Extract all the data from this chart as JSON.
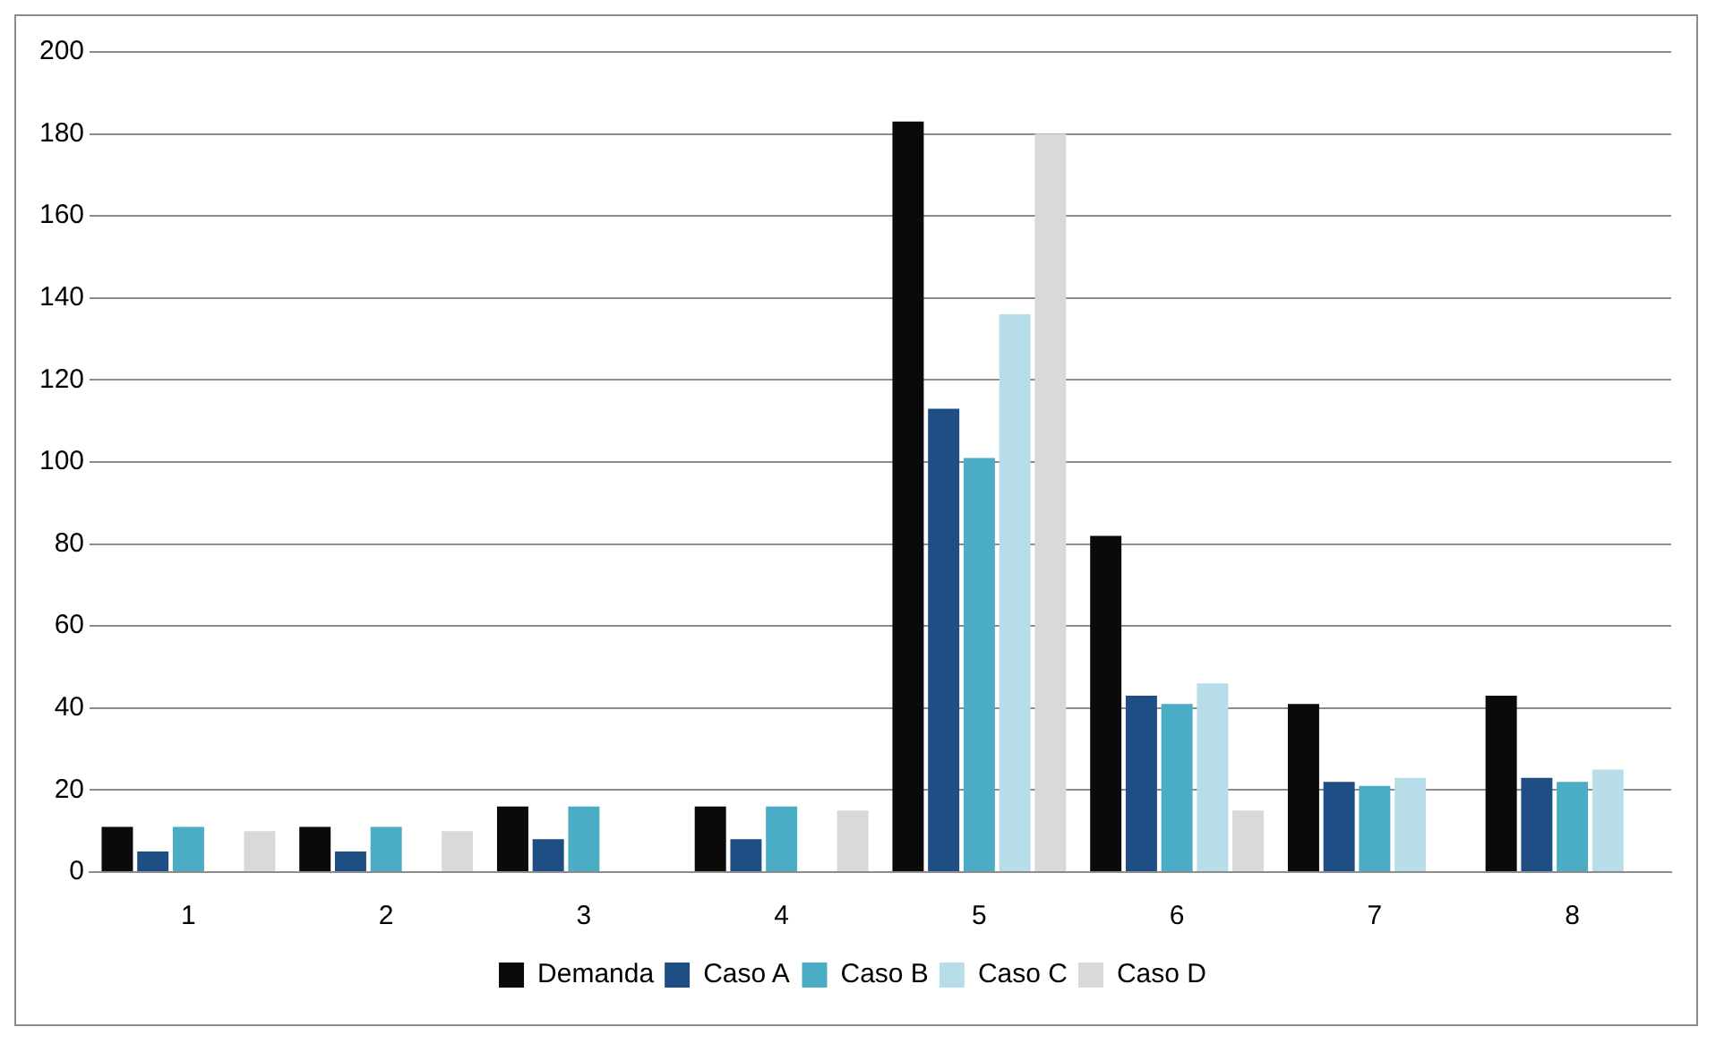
{
  "chart_data": {
    "type": "bar",
    "categories": [
      "1",
      "2",
      "3",
      "4",
      "5",
      "6",
      "7",
      "8"
    ],
    "series": [
      {
        "name": "Demanda",
        "color": "#0a0a0a",
        "values": [
          11,
          11,
          16,
          16,
          183,
          82,
          41,
          43
        ]
      },
      {
        "name": "Caso A",
        "color": "#1f4e85",
        "values": [
          5,
          5,
          8,
          8,
          113,
          43,
          22,
          23
        ]
      },
      {
        "name": "Caso B",
        "color": "#4bacc6",
        "values": [
          11,
          11,
          16,
          16,
          101,
          41,
          21,
          22
        ]
      },
      {
        "name": "Caso C",
        "color": "#b7dee8",
        "values": [
          null,
          null,
          null,
          null,
          136,
          46,
          23,
          25
        ]
      },
      {
        "name": "Caso D",
        "color": "#d9d9d9",
        "values": [
          10,
          10,
          null,
          15,
          180,
          15,
          null,
          null
        ]
      }
    ],
    "ylim": [
      0,
      200
    ],
    "yticks": [
      0,
      20,
      40,
      60,
      80,
      100,
      120,
      140,
      160,
      180,
      200
    ],
    "grid": "y",
    "legend": "bottom"
  }
}
